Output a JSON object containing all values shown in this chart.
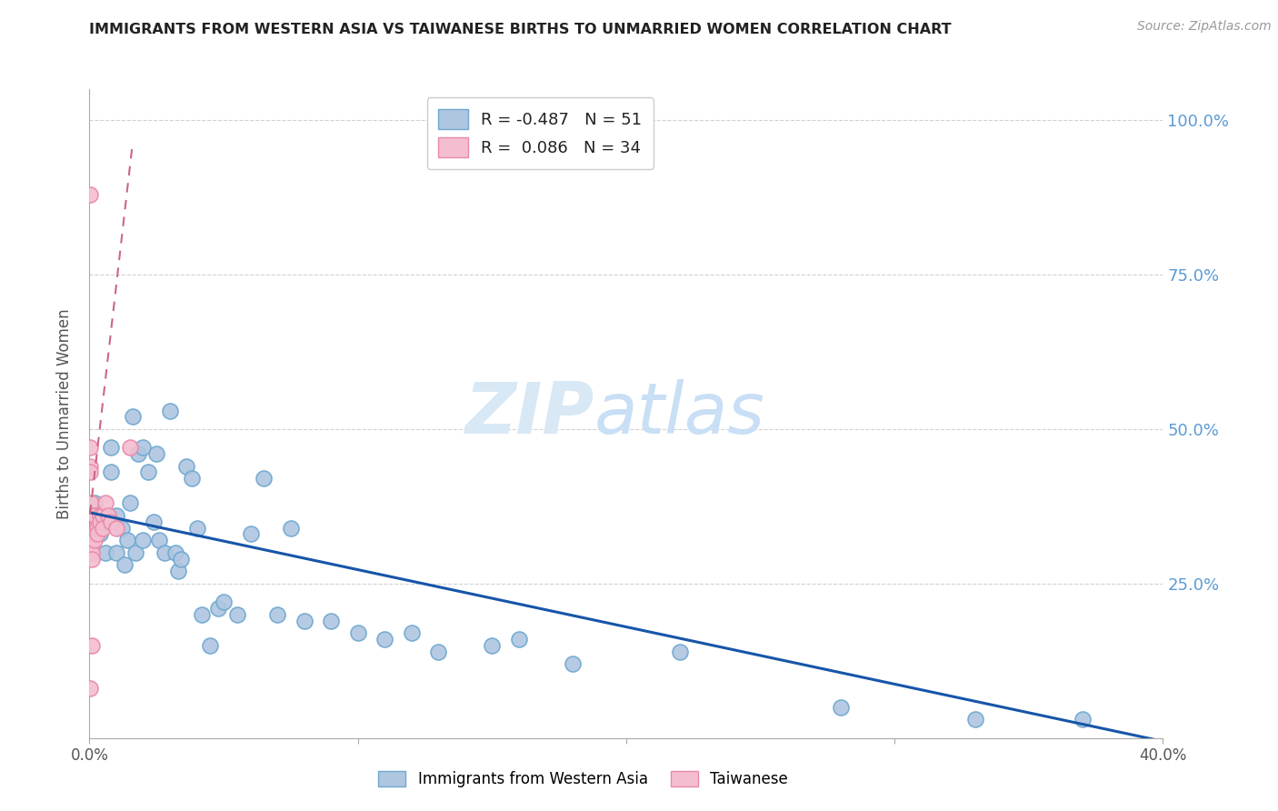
{
  "title": "IMMIGRANTS FROM WESTERN ASIA VS TAIWANESE BIRTHS TO UNMARRIED WOMEN CORRELATION CHART",
  "source": "Source: ZipAtlas.com",
  "ylabel": "Births to Unmarried Women",
  "right_yticklabels": [
    "",
    "25.0%",
    "50.0%",
    "75.0%",
    "100.0%"
  ],
  "xlim": [
    0.0,
    0.4
  ],
  "ylim": [
    0.0,
    1.05
  ],
  "blue_color": "#aec6e0",
  "blue_edge": "#6fa8d0",
  "pink_color": "#f5bdd0",
  "pink_edge": "#e88aaa",
  "trend_blue": "#1755a8",
  "trend_pink": "#cc6688",
  "watermark_zip": "ZIP",
  "watermark_atlas": "atlas",
  "watermark_color": "#d8e8f5",
  "blue_scatter_x": [
    0.002,
    0.003,
    0.004,
    0.006,
    0.008,
    0.008,
    0.01,
    0.01,
    0.012,
    0.013,
    0.014,
    0.015,
    0.016,
    0.017,
    0.018,
    0.02,
    0.02,
    0.022,
    0.024,
    0.025,
    0.026,
    0.028,
    0.03,
    0.032,
    0.033,
    0.034,
    0.036,
    0.038,
    0.04,
    0.042,
    0.045,
    0.048,
    0.05,
    0.055,
    0.06,
    0.065,
    0.07,
    0.075,
    0.08,
    0.09,
    0.1,
    0.11,
    0.12,
    0.13,
    0.15,
    0.16,
    0.18,
    0.22,
    0.28,
    0.33,
    0.37
  ],
  "blue_scatter_y": [
    0.38,
    0.35,
    0.33,
    0.3,
    0.47,
    0.43,
    0.36,
    0.3,
    0.34,
    0.28,
    0.32,
    0.38,
    0.52,
    0.3,
    0.46,
    0.32,
    0.47,
    0.43,
    0.35,
    0.46,
    0.32,
    0.3,
    0.53,
    0.3,
    0.27,
    0.29,
    0.44,
    0.42,
    0.34,
    0.2,
    0.15,
    0.21,
    0.22,
    0.2,
    0.33,
    0.42,
    0.2,
    0.34,
    0.19,
    0.19,
    0.17,
    0.16,
    0.17,
    0.14,
    0.15,
    0.16,
    0.12,
    0.14,
    0.05,
    0.03,
    0.03
  ],
  "pink_scatter_x": [
    0.0003,
    0.0003,
    0.0003,
    0.0003,
    0.0003,
    0.0005,
    0.0005,
    0.0005,
    0.0006,
    0.0006,
    0.0007,
    0.0007,
    0.0008,
    0.0008,
    0.001,
    0.001,
    0.001,
    0.0015,
    0.0015,
    0.002,
    0.002,
    0.002,
    0.002,
    0.003,
    0.003,
    0.004,
    0.004,
    0.005,
    0.005,
    0.006,
    0.007,
    0.008,
    0.01,
    0.015
  ],
  "pink_scatter_y": [
    0.88,
    0.47,
    0.44,
    0.43,
    0.08,
    0.38,
    0.36,
    0.35,
    0.34,
    0.33,
    0.33,
    0.32,
    0.31,
    0.3,
    0.29,
    0.15,
    0.36,
    0.35,
    0.34,
    0.33,
    0.33,
    0.32,
    0.36,
    0.34,
    0.33,
    0.36,
    0.35,
    0.36,
    0.34,
    0.38,
    0.36,
    0.35,
    0.34,
    0.47
  ],
  "blue_trend_x": [
    0.0,
    0.405
  ],
  "blue_trend_y": [
    0.365,
    -0.01
  ],
  "pink_trend_x": [
    -0.002,
    0.016
  ],
  "pink_trend_y": [
    0.28,
    0.96
  ]
}
